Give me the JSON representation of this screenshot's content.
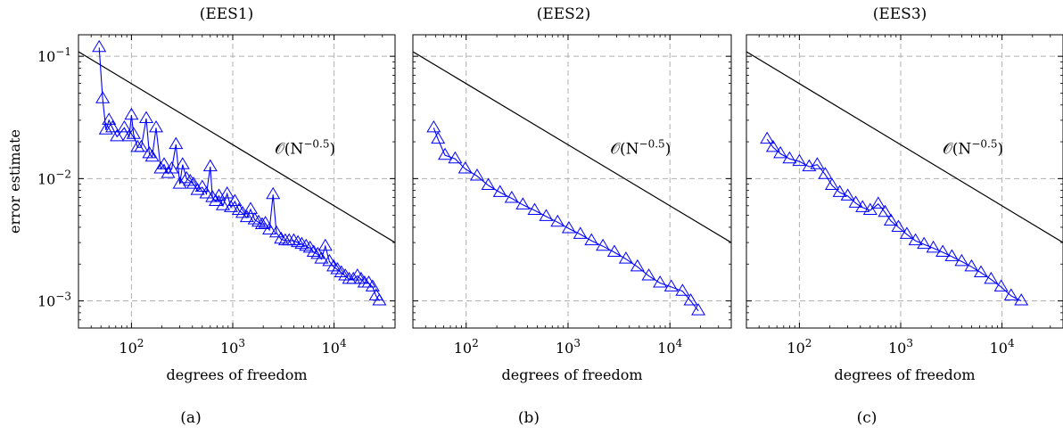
{
  "figure": {
    "panels": [
      {
        "title": "(EES1)",
        "caption": "(a)"
      },
      {
        "title": "(EES2)",
        "caption": "(b)"
      },
      {
        "title": "(EES3)",
        "caption": "(c)"
      }
    ]
  },
  "chart_data": [
    {
      "type": "line",
      "title": "(EES1)",
      "xlabel": "degrees of freedom",
      "ylabel": "error estimate",
      "xscale": "log",
      "yscale": "log",
      "xlim": [
        30,
        40000
      ],
      "ylim": [
        0.0006,
        0.15
      ],
      "xticks": [
        {
          "value": 100,
          "label": "10^2"
        },
        {
          "value": 1000,
          "label": "10^3"
        },
        {
          "value": 10000,
          "label": "10^4"
        }
      ],
      "yticks": [
        {
          "value": 0.001,
          "label": "10^-3"
        },
        {
          "value": 0.01,
          "label": "10^-2"
        },
        {
          "value": 0.1,
          "label": "10^-1"
        }
      ],
      "grid": true,
      "reference_line": {
        "label": "𝒪(N^-0.5)",
        "x": [
          30,
          40000
        ],
        "y": [
          0.109,
          0.003
        ]
      },
      "series": [
        {
          "marker": "triangle",
          "color": "#0000ff",
          "x": [
            48,
            52,
            56,
            60,
            65,
            72,
            85,
            95,
            100,
            105,
            115,
            125,
            140,
            150,
            160,
            175,
            195,
            210,
            230,
            250,
            275,
            300,
            320,
            350,
            380,
            410,
            450,
            500,
            550,
            600,
            630,
            680,
            730,
            800,
            880,
            960,
            1050,
            1150,
            1250,
            1380,
            1500,
            1650,
            1800,
            1950,
            2100,
            2300,
            2500,
            2700,
            3000,
            3300,
            3600,
            4000,
            4400,
            4800,
            5300,
            5800,
            6300,
            6900,
            7500,
            8200,
            9000,
            9900,
            10800,
            11800,
            12900,
            14100,
            15500,
            17000,
            18500,
            20000,
            22000,
            24000,
            26000,
            28000
          ],
          "y": [
            0.118,
            0.045,
            0.025,
            0.03,
            0.026,
            0.022,
            0.026,
            0.022,
            0.033,
            0.023,
            0.018,
            0.018,
            0.031,
            0.016,
            0.015,
            0.026,
            0.012,
            0.013,
            0.011,
            0.012,
            0.019,
            0.009,
            0.013,
            0.01,
            0.0095,
            0.009,
            0.008,
            0.0085,
            0.0075,
            0.0125,
            0.007,
            0.0065,
            0.0072,
            0.006,
            0.0075,
            0.0058,
            0.0065,
            0.0055,
            0.0052,
            0.0048,
            0.0056,
            0.0046,
            0.0044,
            0.0042,
            0.0043,
            0.0038,
            0.0074,
            0.0036,
            0.0032,
            0.0031,
            0.0031,
            0.0031,
            0.003,
            0.0029,
            0.0028,
            0.0027,
            0.0025,
            0.0024,
            0.0022,
            0.0028,
            0.0021,
            0.0019,
            0.0018,
            0.0017,
            0.0016,
            0.0015,
            0.0015,
            0.0016,
            0.0015,
            0.0014,
            0.0014,
            0.0013,
            0.0011,
            0.001
          ]
        }
      ]
    },
    {
      "type": "line",
      "title": "(EES2)",
      "xlabel": "degrees of freedom",
      "ylabel": "",
      "xscale": "log",
      "yscale": "log",
      "xlim": [
        30,
        40000
      ],
      "ylim": [
        0.0006,
        0.15
      ],
      "xticks": [
        {
          "value": 100,
          "label": "10^2"
        },
        {
          "value": 1000,
          "label": "10^3"
        },
        {
          "value": 10000,
          "label": "10^4"
        }
      ],
      "yticks": [],
      "grid": true,
      "reference_line": {
        "label": "𝒪(N^-0.5)",
        "x": [
          30,
          40000
        ],
        "y": [
          0.109,
          0.003
        ]
      },
      "series": [
        {
          "marker": "triangle",
          "color": "#0000ff",
          "x": [
            48,
            53,
            62,
            78,
            98,
            128,
            165,
            215,
            280,
            360,
            470,
            610,
            790,
            1020,
            1320,
            1700,
            2200,
            2850,
            3700,
            4800,
            6200,
            8000,
            10300,
            13300,
            16000,
            19000
          ],
          "y": [
            0.026,
            0.021,
            0.0155,
            0.0145,
            0.012,
            0.0105,
            0.0088,
            0.0077,
            0.0069,
            0.0061,
            0.0055,
            0.0049,
            0.0044,
            0.0039,
            0.0035,
            0.0031,
            0.0028,
            0.0025,
            0.0022,
            0.0019,
            0.0016,
            0.0014,
            0.0013,
            0.0012,
            0.001,
            0.00083
          ]
        }
      ]
    },
    {
      "type": "line",
      "title": "(EES3)",
      "xlabel": "degrees of freedom",
      "ylabel": "",
      "xscale": "log",
      "yscale": "log",
      "xlim": [
        30,
        40000
      ],
      "ylim": [
        0.0006,
        0.15
      ],
      "xticks": [
        {
          "value": 100,
          "label": "10^2"
        },
        {
          "value": 1000,
          "label": "10^3"
        },
        {
          "value": 10000,
          "label": "10^4"
        }
      ],
      "yticks": [],
      "grid": true,
      "reference_line": {
        "label": "𝒪(N^-0.5)",
        "x": [
          30,
          40000
        ],
        "y": [
          0.109,
          0.003
        ]
      },
      "series": [
        {
          "marker": "triangle",
          "color": "#0000ff",
          "x": [
            48,
            55,
            65,
            80,
            100,
            125,
            150,
            180,
            210,
            250,
            300,
            360,
            420,
            500,
            600,
            700,
            800,
            950,
            1150,
            1400,
            1700,
            2100,
            2600,
            3200,
            4000,
            5000,
            6200,
            7800,
            9800,
            12300,
            15500
          ],
          "y": [
            0.021,
            0.018,
            0.016,
            0.0145,
            0.0138,
            0.0125,
            0.013,
            0.0108,
            0.0088,
            0.0077,
            0.0072,
            0.0063,
            0.0058,
            0.0055,
            0.0062,
            0.0053,
            0.0045,
            0.004,
            0.0035,
            0.0031,
            0.0029,
            0.0027,
            0.0025,
            0.0023,
            0.0021,
            0.0019,
            0.0017,
            0.0015,
            0.0013,
            0.0011,
            0.001
          ]
        }
      ]
    }
  ]
}
